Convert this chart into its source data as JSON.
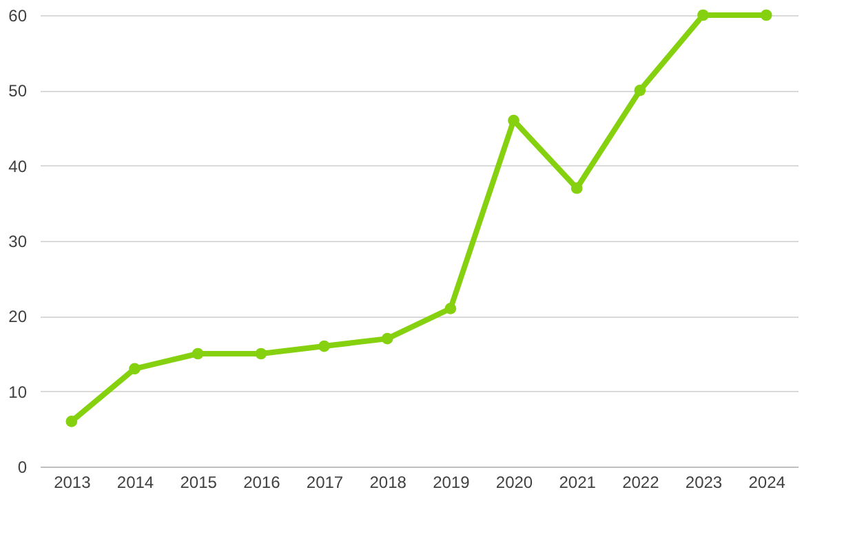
{
  "chart_data": {
    "type": "line",
    "categories": [
      "2013",
      "2014",
      "2015",
      "2016",
      "2017",
      "2018",
      "2019",
      "2020",
      "2021",
      "2022",
      "2023",
      "2024"
    ],
    "series": [
      {
        "color": "#86d10f",
        "values": [
          6,
          13,
          15,
          15,
          16,
          17,
          21,
          46,
          37,
          50,
          60,
          60
        ]
      }
    ],
    "ylim": [
      0,
      60
    ],
    "yticks": [
      0,
      10,
      20,
      30,
      40,
      50,
      60
    ],
    "grid": "y",
    "marker": "circle",
    "line_style": "solid",
    "legend": false
  }
}
